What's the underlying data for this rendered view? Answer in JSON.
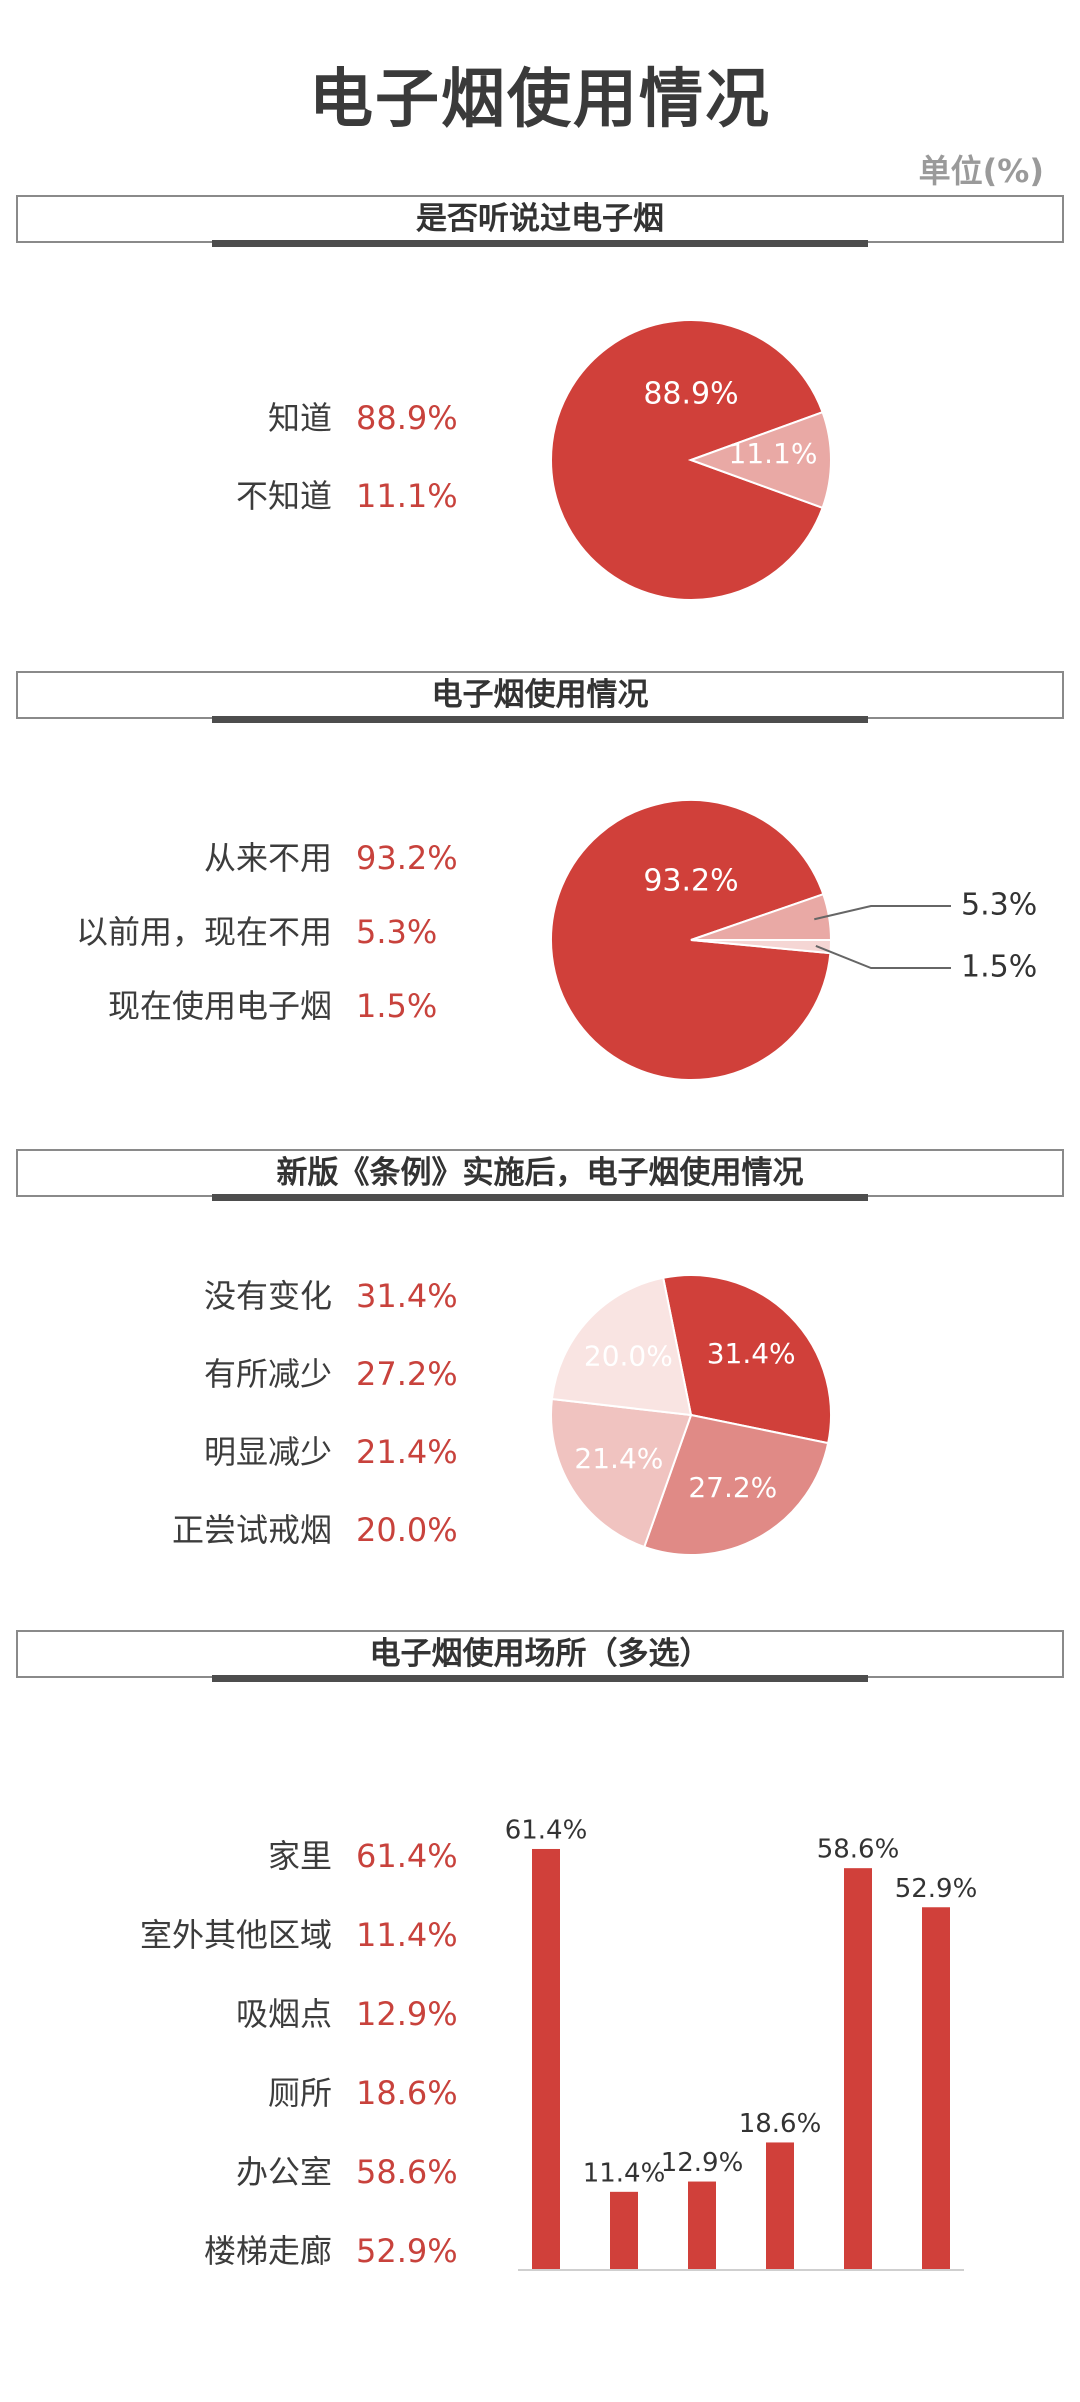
{
  "page": {
    "title": "电子烟使用情况",
    "unit": "单位(%)"
  },
  "colors": {
    "dark_red": "#d0403a",
    "mid_red": "#e08a86",
    "light_red": "#eeb9b6",
    "pale_red": "#f7dedc",
    "value_text": "#c8423c"
  },
  "sections": [
    {
      "title": "是否听说过电子烟"
    },
    {
      "title": "电子烟使用情况"
    },
    {
      "title": "新版《条例》实施后，电子烟使用情况"
    },
    {
      "title": "电子烟使用场所（多选）"
    }
  ],
  "chart_data": [
    {
      "type": "pie",
      "title": "是否听说过电子烟",
      "categories": [
        "知道",
        "不知道"
      ],
      "values": [
        88.9,
        11.1
      ],
      "value_labels": [
        "88.9%",
        "11.1%"
      ],
      "colors": [
        "#d0403a",
        "#e9a9a5"
      ]
    },
    {
      "type": "pie",
      "title": "电子烟使用情况",
      "categories": [
        "从来不用",
        "以前用，现在不用",
        "现在使用电子烟"
      ],
      "values": [
        93.2,
        5.3,
        1.5
      ],
      "value_labels": [
        "93.2%",
        "5.3%",
        "1.5%"
      ],
      "colors": [
        "#d0403a",
        "#e9a9a5",
        "#f5d6d4"
      ]
    },
    {
      "type": "pie",
      "title": "新版《条例》实施后，电子烟使用情况",
      "categories": [
        "没有变化",
        "有所减少",
        "明显减少",
        "正尝试戒烟"
      ],
      "values": [
        31.4,
        27.2,
        21.4,
        20.0
      ],
      "value_labels": [
        "31.4%",
        "27.2%",
        "21.4%",
        "20.0%"
      ],
      "colors": [
        "#d0403a",
        "#e08a86",
        "#f0c3c0",
        "#f9e4e2"
      ]
    },
    {
      "type": "bar",
      "title": "电子烟使用场所（多选）",
      "categories": [
        "家里",
        "室外其他区域",
        "吸烟点",
        "厕所",
        "办公室",
        "楼梯走廊"
      ],
      "values": [
        61.4,
        11.4,
        12.9,
        18.6,
        58.6,
        52.9
      ],
      "value_labels": [
        "61.4%",
        "11.4%",
        "12.9%",
        "18.6%",
        "58.6%",
        "52.9%"
      ],
      "ylim": [
        0,
        70
      ],
      "color": "#d0403a"
    }
  ]
}
